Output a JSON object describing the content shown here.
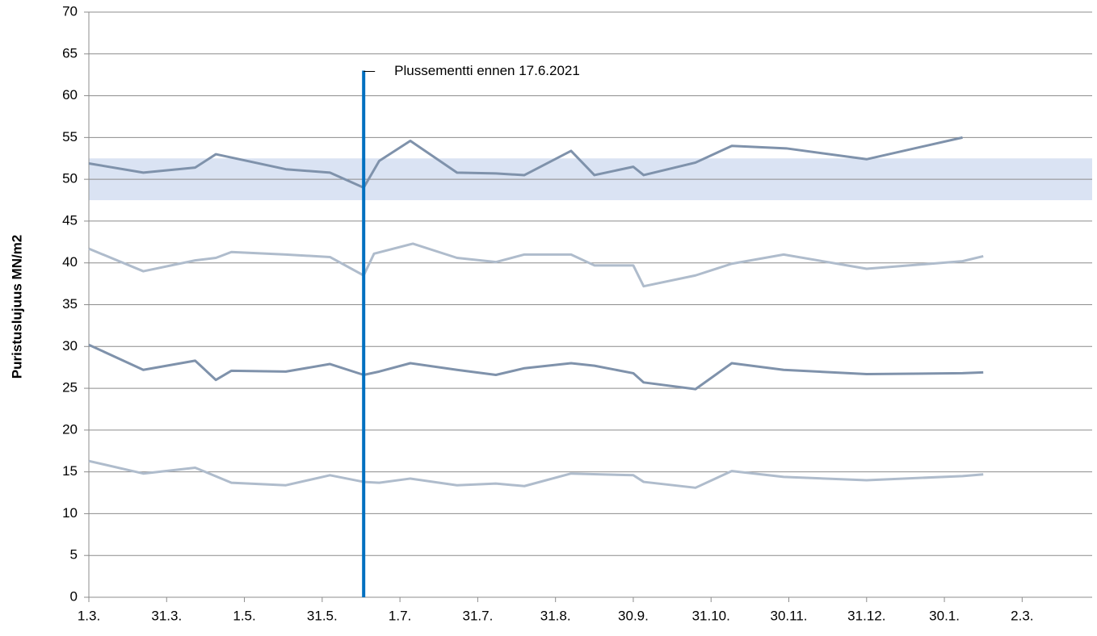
{
  "chart_data": {
    "type": "line",
    "y_label": "Puristuslujuus  MN/m2",
    "xlim": [
      0,
      387
    ],
    "xticks": [
      {
        "value": 0,
        "label": "1.3."
      },
      {
        "value": 30,
        "label": "31.3."
      },
      {
        "value": 60,
        "label": "1.5."
      },
      {
        "value": 90,
        "label": "31.5."
      },
      {
        "value": 120,
        "label": "1.7."
      },
      {
        "value": 150,
        "label": "31.7."
      },
      {
        "value": 180,
        "label": "31.8."
      },
      {
        "value": 210,
        "label": "30.9."
      },
      {
        "value": 240,
        "label": "31.10."
      },
      {
        "value": 270,
        "label": "30.11."
      },
      {
        "value": 300,
        "label": "31.12."
      },
      {
        "value": 330,
        "label": "30.1."
      },
      {
        "value": 360,
        "label": "2.3."
      }
    ],
    "ylim": [
      0,
      70
    ],
    "yticks": [
      0,
      5,
      10,
      15,
      20,
      25,
      30,
      35,
      40,
      45,
      50,
      55,
      60,
      65,
      70
    ],
    "grid": true,
    "band": {
      "y": [
        47.5,
        52.5
      ],
      "color": "#dae3f3"
    },
    "annotation": {
      "text": "Plussementti ennen 17.6.2021",
      "x": 106,
      "y": 63,
      "color": "#0070c0"
    },
    "series": [
      {
        "color": "#7f92ab",
        "x": [
          0,
          21,
          41,
          49,
          55,
          76,
          93,
          106,
          112,
          124,
          142,
          157,
          168,
          186,
          195,
          210,
          214,
          234,
          248,
          269,
          300,
          337
        ],
        "values": [
          51.9,
          50.8,
          51.4,
          53,
          52.6,
          51.2,
          50.8,
          49,
          52.2,
          54.6,
          50.8,
          50.7,
          50.5,
          53.4,
          50.5,
          51.5,
          50.5,
          52,
          54,
          53.7,
          52.4,
          55
        ]
      },
      {
        "color": "#afbccc",
        "x": [
          0,
          21,
          41,
          49,
          55,
          76,
          93,
          106,
          110,
          125,
          142,
          157,
          168,
          186,
          195,
          210,
          214,
          234,
          248,
          268,
          300,
          337,
          345
        ],
        "values": [
          41.7,
          39,
          40.3,
          40.6,
          41.3,
          41,
          40.7,
          38.5,
          41.1,
          42.3,
          40.6,
          40.1,
          41,
          41,
          39.7,
          39.7,
          37.2,
          38.5,
          39.9,
          41,
          39.3,
          40.2,
          40.8
        ]
      },
      {
        "color": "#7f92ab",
        "x": [
          0,
          21,
          41,
          49,
          55,
          76,
          93,
          106,
          112,
          124,
          142,
          157,
          168,
          186,
          195,
          210,
          214,
          234,
          248,
          268,
          300,
          337,
          345
        ],
        "values": [
          30.2,
          27.2,
          28.3,
          26,
          27.1,
          27,
          27.9,
          26.6,
          27,
          28,
          27.2,
          26.6,
          27.4,
          28,
          27.7,
          26.8,
          25.7,
          24.9,
          28,
          27.2,
          26.7,
          26.8,
          26.9
        ]
      },
      {
        "color": "#afbccc",
        "x": [
          0,
          21,
          41,
          55,
          76,
          93,
          106,
          112,
          124,
          142,
          157,
          168,
          186,
          210,
          214,
          234,
          248,
          268,
          300,
          337,
          345
        ],
        "values": [
          16.3,
          14.8,
          15.5,
          13.7,
          13.4,
          14.6,
          13.8,
          13.7,
          14.2,
          13.4,
          13.6,
          13.3,
          14.8,
          14.6,
          13.8,
          13.1,
          15.1,
          14.4,
          14,
          14.5,
          14.7
        ]
      }
    ]
  }
}
